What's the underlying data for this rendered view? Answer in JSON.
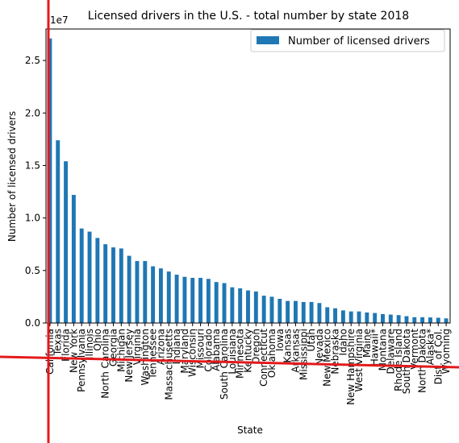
{
  "chart_data": {
    "type": "bar",
    "title": "Licensed drivers in the U.S. - total number by state 2018",
    "xlabel": "State",
    "ylabel": "Number of licensed drivers",
    "scale_label": "1e7",
    "ylim": [
      0,
      28000000
    ],
    "yticks": [
      0,
      5000000,
      10000000,
      15000000,
      20000000,
      25000000
    ],
    "ytick_labels": [
      "0.0",
      "0.5",
      "1.0",
      "1.5",
      "2.0",
      "2.5"
    ],
    "legend_position": "top-right",
    "grid": false,
    "bar_color": "#1f77b4",
    "categories": [
      "California",
      "Texas",
      "Florida",
      "New York",
      "Pennsylvania",
      "Illinois",
      "Ohio",
      "North Carolina",
      "Georgia",
      "Michigan",
      "New Jersey",
      "Virginia",
      "Washington",
      "Tennessee",
      "Arizona",
      "Massachusetts",
      "Indiana",
      "Maryland",
      "Wisconsin",
      "Missouri",
      "Colorado",
      "Alabama",
      "South Carolina",
      "Louisiana",
      "Minnesota",
      "Kentucky",
      "Oregon",
      "Connecticut",
      "Oklahoma",
      "Iowa",
      "Kansas",
      "Arkansas",
      "Mississippi",
      "Utah",
      "Nevada",
      "New Mexico",
      "Nebraska",
      "Idaho",
      "New Hampshire",
      "West Virginia",
      "Maine",
      "Hawaii*",
      "Montana",
      "Delaware",
      "Rhode Island",
      "South Dakota",
      "Vermont",
      "North Dakota",
      "Alaska*",
      "Dist. of Col.",
      "Wyoming"
    ],
    "series": [
      {
        "name": "Number of licensed drivers",
        "values": [
          27100000,
          17400000,
          15400000,
          12200000,
          9000000,
          8700000,
          8100000,
          7500000,
          7200000,
          7100000,
          6400000,
          5900000,
          5900000,
          5400000,
          5200000,
          4900000,
          4600000,
          4400000,
          4300000,
          4300000,
          4200000,
          3900000,
          3800000,
          3400000,
          3300000,
          3100000,
          3000000,
          2600000,
          2500000,
          2300000,
          2100000,
          2100000,
          2000000,
          2000000,
          1900000,
          1500000,
          1400000,
          1200000,
          1100000,
          1100000,
          1000000,
          950000,
          850000,
          800000,
          750000,
          650000,
          550000,
          550000,
          530000,
          500000,
          440000
        ]
      }
    ]
  }
}
